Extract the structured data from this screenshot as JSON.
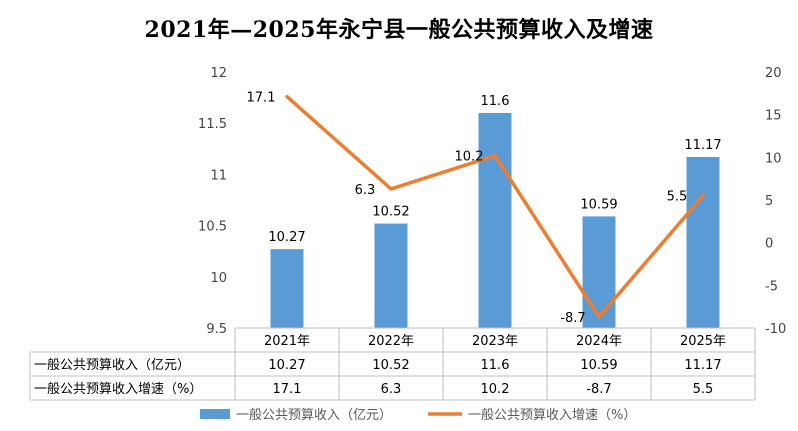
{
  "chart_data": {
    "type": "bar",
    "title": "2021年—2025年永宁县一般公共预算收入及增速",
    "categories": [
      "2021年",
      "2022年",
      "2023年",
      "2024年",
      "2025年"
    ],
    "series": [
      {
        "name": "一般公共预算收入（亿元）",
        "type": "bar",
        "axis": "left",
        "values": [
          10.27,
          10.52,
          11.6,
          10.59,
          11.17
        ],
        "color": "#5B9BD5"
      },
      {
        "name": "一般公共预算收入增速（%）",
        "type": "line",
        "axis": "right",
        "values": [
          17.1,
          6.3,
          10.2,
          -8.7,
          5.5
        ],
        "color": "#ED7D31"
      }
    ],
    "left_axis": {
      "ylim": [
        9.5,
        12
      ],
      "ticks": [
        9.5,
        10,
        10.5,
        11,
        11.5,
        12
      ]
    },
    "right_axis": {
      "ylim": [
        -10,
        20
      ],
      "ticks": [
        -10,
        -5,
        0,
        5,
        10,
        15,
        20
      ]
    },
    "grid": false,
    "data_table": true,
    "legend": "bottom"
  }
}
